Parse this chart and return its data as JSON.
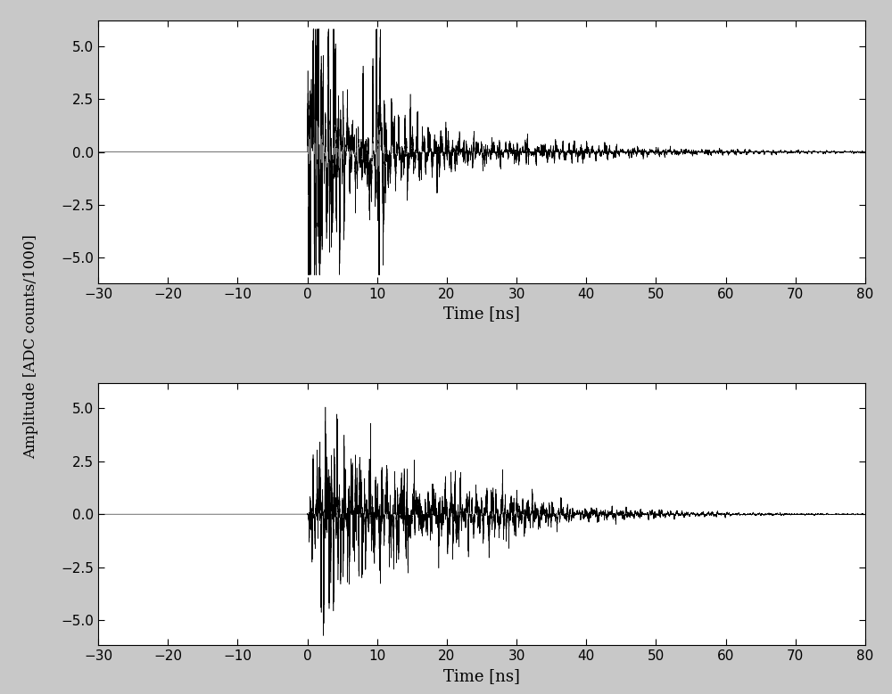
{
  "xlim": [
    -30,
    80
  ],
  "ylim": [
    -6.2,
    6.2
  ],
  "xlabel": "Time [ns]",
  "ylabel": "Amplitude [ADC counts/1000]",
  "xticks": [
    -30,
    -20,
    -10,
    0,
    10,
    20,
    30,
    40,
    50,
    60,
    70,
    80
  ],
  "yticks": [
    -5,
    -2.5,
    0,
    2.5,
    5
  ],
  "line_color": "#000000",
  "line_width": 0.4,
  "background_color": "#ffffff",
  "figure_background": "#c8c8c8",
  "n_points": 55000,
  "noise_floor": 0.008,
  "seed1": 101,
  "seed2": 202
}
